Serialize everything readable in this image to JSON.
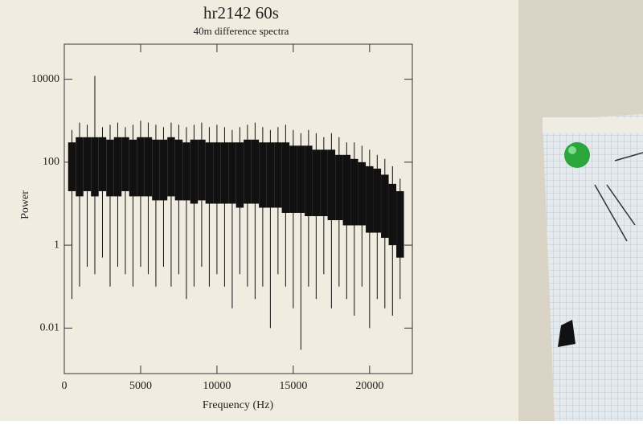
{
  "chart_data": {
    "type": "spectrum",
    "title": "hr2142 60s",
    "subtitle": "40m difference spectra",
    "x_label": "Frequency (Hz)",
    "y_label": "Power",
    "x": [
      500,
      1000,
      1500,
      2000,
      2500,
      3000,
      3500,
      4000,
      4500,
      5000,
      5500,
      6000,
      6500,
      7000,
      7500,
      8000,
      8500,
      9000,
      9500,
      10000,
      10500,
      11000,
      11500,
      12000,
      12500,
      13000,
      13500,
      14000,
      14500,
      15000,
      15500,
      16000,
      16500,
      17000,
      17500,
      18000,
      18500,
      19000,
      19500,
      20000,
      20500,
      21000,
      21500,
      22000
    ],
    "series": [
      {
        "color": "#111111",
        "values": [
          600,
          900,
          800,
          12000,
          700,
          800,
          900,
          700,
          800,
          1000,
          900,
          800,
          700,
          900,
          800,
          700,
          800,
          900,
          700,
          800,
          700,
          600,
          700,
          800,
          900,
          700,
          600,
          700,
          800,
          600,
          500,
          600,
          500,
          400,
          500,
          400,
          300,
          300,
          250,
          200,
          150,
          120,
          80,
          40
        ]
      },
      {
        "color": "#111111",
        "values": [
          300,
          400,
          400,
          400,
          400,
          350,
          400,
          400,
          350,
          400,
          400,
          350,
          350,
          400,
          350,
          300,
          350,
          350,
          300,
          300,
          300,
          300,
          300,
          350,
          350,
          300,
          300,
          300,
          300,
          250,
          250,
          250,
          200,
          200,
          200,
          150,
          150,
          120,
          100,
          80,
          70,
          50,
          30,
          20
        ]
      },
      {
        "color": "#111111",
        "values": [
          20,
          15,
          20,
          15,
          20,
          15,
          15,
          20,
          15,
          15,
          15,
          12,
          12,
          15,
          12,
          12,
          10,
          12,
          10,
          10,
          10,
          10,
          8,
          10,
          10,
          8,
          8,
          8,
          6,
          6,
          6,
          5,
          5,
          5,
          4,
          4,
          3,
          3,
          3,
          2,
          2,
          1.5,
          1,
          0.5
        ]
      },
      {
        "color": "#111111",
        "values": [
          0.05,
          0.1,
          0.3,
          0.2,
          0.5,
          0.1,
          0.3,
          0.2,
          0.1,
          0.3,
          0.2,
          0.1,
          0.3,
          0.1,
          0.2,
          0.05,
          0.1,
          0.3,
          0.1,
          0.2,
          0.1,
          0.03,
          0.2,
          0.1,
          0.05,
          0.1,
          0.01,
          0.2,
          0.1,
          0.03,
          0.003,
          0.1,
          0.05,
          0.2,
          0.03,
          0.1,
          0.05,
          0.02,
          0.1,
          0.01,
          0.05,
          0.03,
          0.02,
          0.05
        ]
      }
    ],
    "xlim": [
      0,
      22800
    ],
    "xticks": [
      0,
      5000,
      10000,
      15000,
      20000
    ],
    "ylim": [
      0.0008,
      70000
    ],
    "yticks": [
      0.01,
      1,
      100,
      10000
    ],
    "log_y": true,
    "grid": false
  }
}
